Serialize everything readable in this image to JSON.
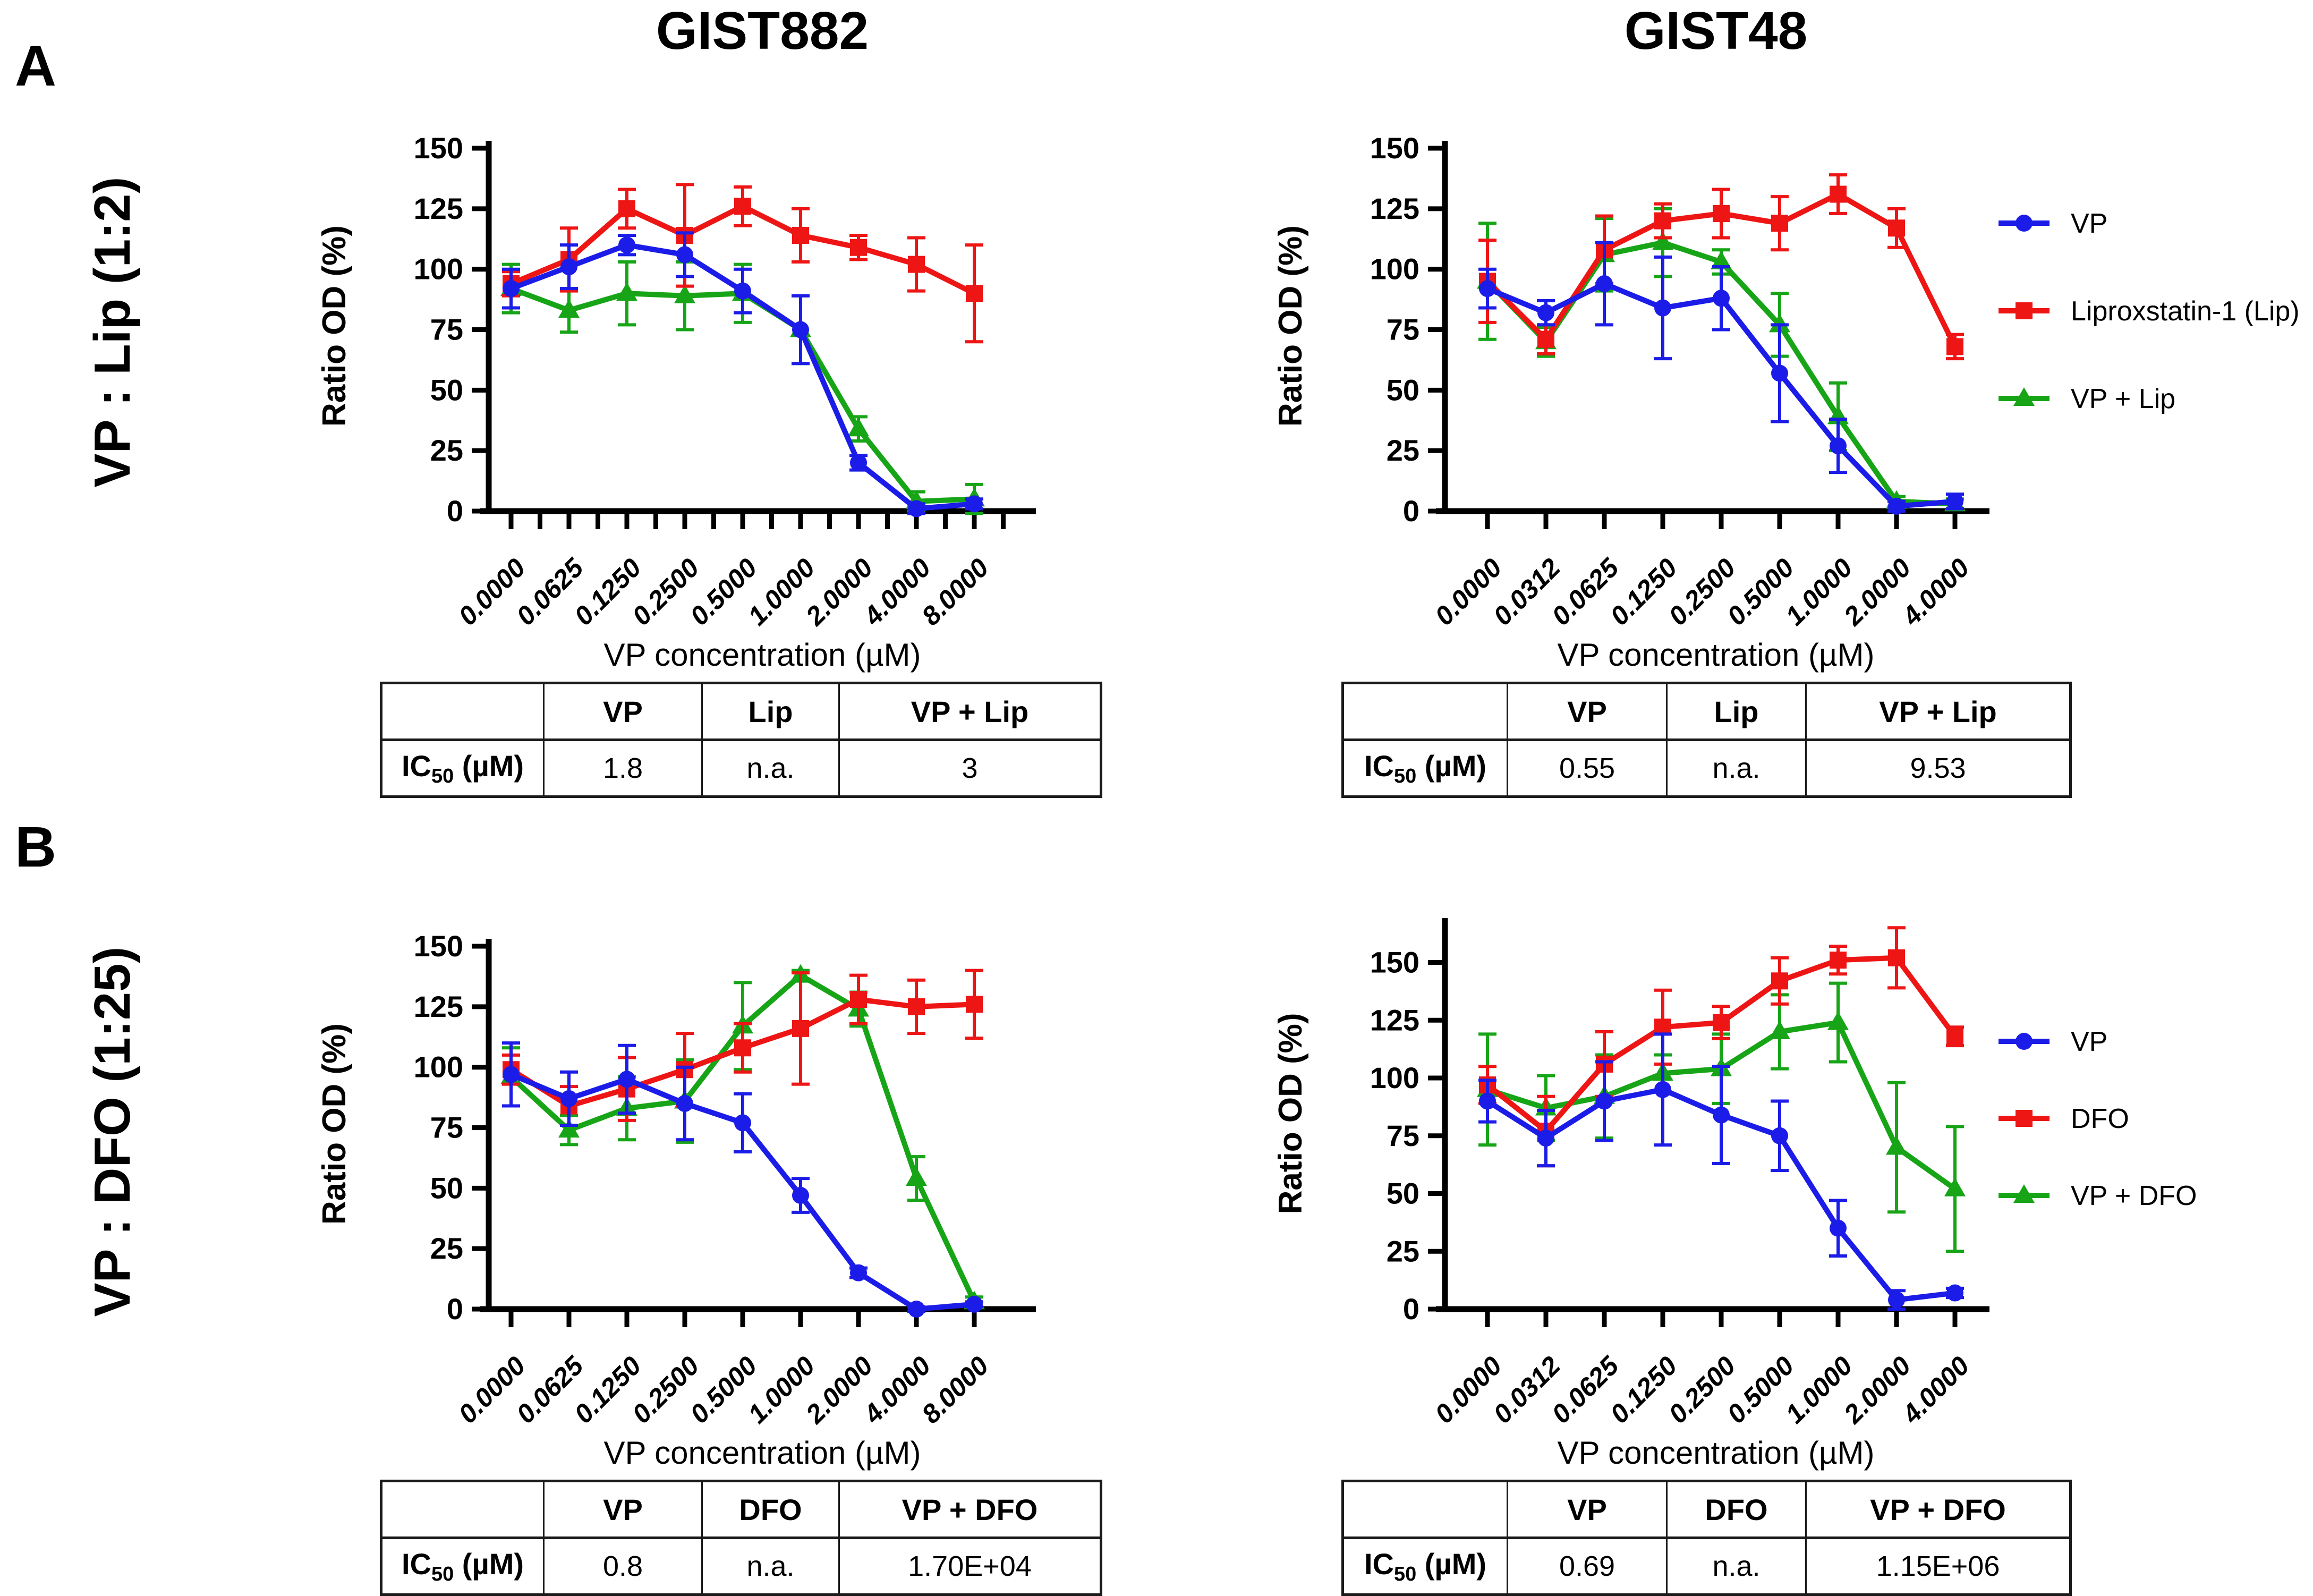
{
  "colors": {
    "vp": "#1C1CE8",
    "lip": "#EE1515",
    "combo": "#17A517",
    "axis": "#000000"
  },
  "panels": {
    "a": {
      "label": "A",
      "row_label": "VP : Lip (1:2)"
    },
    "b": {
      "label": "B",
      "row_label": "VP : DFO (1:25)"
    }
  },
  "columns": [
    {
      "title": "GIST882"
    },
    {
      "title": "GIST48"
    }
  ],
  "axis": {
    "y_label": "Ratio OD (%)",
    "x_label": "VP concentration (µM)",
    "y_ticks": [
      0,
      25,
      50,
      75,
      100,
      125,
      150
    ]
  },
  "chart_data": [
    {
      "type": "line",
      "panel": "A",
      "cell_line": "GIST882",
      "title": "GIST882",
      "xlabel": "VP concentration (µM)",
      "ylabel": "Ratio OD (%)",
      "ylim": [
        0,
        150
      ],
      "grid": false,
      "legend_position": "none",
      "categories": [
        "0.0000",
        "0.0625",
        "0.1250",
        "0.2500",
        "0.5000",
        "1.0000",
        "2.0000",
        "4.0000",
        "8.0000"
      ],
      "series": [
        {
          "name": "VP",
          "marker": "circle",
          "color": "vp",
          "values": [
            92,
            101,
            110,
            106,
            91,
            75,
            20,
            1,
            3
          ],
          "errors": [
            8,
            9,
            4,
            9,
            9,
            14,
            3,
            2,
            2
          ]
        },
        {
          "name": "Liproxstatin-1 (Lip)",
          "marker": "square",
          "color": "lip",
          "values": [
            94,
            104,
            125,
            114,
            126,
            114,
            109,
            102,
            90
          ],
          "errors": [
            5,
            13,
            8,
            21,
            8,
            11,
            5,
            11,
            20
          ]
        },
        {
          "name": "VP + Lip",
          "marker": "triangle",
          "color": "combo",
          "values": [
            92,
            83,
            90,
            89,
            90,
            75,
            34,
            4,
            5
          ],
          "errors": [
            10,
            9,
            13,
            14,
            12,
            14,
            5,
            4,
            6
          ]
        }
      ],
      "table": {
        "corner": "",
        "col_headers": [
          "VP",
          "Lip",
          "VP + Lip"
        ],
        "row_label": {
          "prefix": "IC",
          "sub": "50",
          "suffix": " (µM)"
        },
        "values": [
          "1.8",
          "n.a.",
          "3"
        ]
      }
    },
    {
      "type": "line",
      "panel": "A",
      "cell_line": "GIST48",
      "title": "GIST48",
      "xlabel": "VP concentration (µM)",
      "ylabel": "Ratio OD (%)",
      "ylim": [
        0,
        150
      ],
      "grid": false,
      "legend_position": "right",
      "categories": [
        "0.0000",
        "0.0312",
        "0.0625",
        "0.1250",
        "0.2500",
        "0.5000",
        "1.0000",
        "2.0000",
        "4.0000"
      ],
      "series": [
        {
          "name": "VP",
          "marker": "circle",
          "color": "vp",
          "values": [
            92,
            82,
            94,
            84,
            88,
            57,
            27,
            2,
            4
          ],
          "errors": [
            8,
            5,
            17,
            21,
            13,
            20,
            11,
            2,
            3
          ]
        },
        {
          "name": "Liproxstatin-1 (Lip)",
          "marker": "square",
          "color": "lip",
          "values": [
            95,
            71,
            108,
            120,
            123,
            119,
            131,
            117,
            68
          ],
          "errors": [
            17,
            6,
            14,
            7,
            10,
            11,
            8,
            8,
            5
          ]
        },
        {
          "name": "VP + Lip",
          "marker": "triangle",
          "color": "combo",
          "values": [
            95,
            70,
            106,
            111,
            103,
            77,
            39,
            4,
            3
          ],
          "errors": [
            24,
            6,
            15,
            14,
            5,
            13,
            14,
            2,
            2
          ]
        }
      ],
      "table": {
        "corner": "",
        "col_headers": [
          "VP",
          "Lip",
          "VP + Lip"
        ],
        "row_label": {
          "prefix": "IC",
          "sub": "50",
          "suffix": " (µM)"
        },
        "values": [
          "0.55",
          "n.a.",
          "9.53"
        ]
      }
    },
    {
      "type": "line",
      "panel": "B",
      "cell_line": "GIST882",
      "title": "GIST882",
      "xlabel": "VP concentration (µM)",
      "ylabel": "Ratio OD (%)",
      "ylim": [
        0,
        150
      ],
      "grid": false,
      "legend_position": "none",
      "categories": [
        "0.0000",
        "0.0625",
        "0.1250",
        "0.2500",
        "0.5000",
        "1.0000",
        "2.0000",
        "4.0000",
        "8.0000"
      ],
      "series": [
        {
          "name": "VP",
          "marker": "circle",
          "color": "vp",
          "values": [
            97,
            87,
            95,
            85,
            77,
            47,
            15,
            0,
            2
          ],
          "errors": [
            13,
            11,
            14,
            15,
            12,
            7,
            2,
            1,
            1
          ]
        },
        {
          "name": "DFO",
          "marker": "square",
          "color": "lip",
          "values": [
            99,
            84,
            91,
            99,
            108,
            116,
            128,
            125,
            126
          ],
          "errors": [
            6,
            8,
            13,
            15,
            10,
            23,
            10,
            11,
            14
          ]
        },
        {
          "name": "VP + DFO",
          "marker": "triangle",
          "color": "combo",
          "values": [
            96,
            74,
            83,
            86,
            117,
            138,
            124,
            54,
            3
          ],
          "errors": [
            12,
            6,
            13,
            17,
            18,
            2,
            7,
            9,
            2
          ]
        }
      ],
      "table": {
        "corner": "",
        "col_headers": [
          "VP",
          "DFO",
          "VP + DFO"
        ],
        "row_label": {
          "prefix": "IC",
          "sub": "50",
          "suffix": " (µM)"
        },
        "values": [
          "0.8",
          "n.a.",
          "1.70E+04"
        ]
      }
    },
    {
      "type": "line",
      "panel": "B",
      "cell_line": "GIST48",
      "title": "GIST48",
      "xlabel": "VP concentration (µM)",
      "ylabel": "Ratio OD (%)",
      "ylim": [
        0,
        166
      ],
      "grid": false,
      "legend_position": "right",
      "categories": [
        "0.0000",
        "0.0312",
        "0.0625",
        "0.1250",
        "0.2500",
        "0.5000",
        "1.0000",
        "2.0000",
        "4.0000"
      ],
      "series": [
        {
          "name": "VP",
          "marker": "circle",
          "color": "vp",
          "values": [
            90,
            74,
            90,
            95,
            84,
            75,
            35,
            4,
            7
          ],
          "errors": [
            9,
            12,
            17,
            24,
            21,
            15,
            12,
            4,
            2
          ]
        },
        {
          "name": "DFO",
          "marker": "square",
          "color": "lip",
          "values": [
            97,
            77,
            106,
            122,
            124,
            142,
            151,
            152,
            118
          ],
          "errors": [
            8,
            15,
            14,
            16,
            7,
            10,
            6,
            13,
            4
          ]
        },
        {
          "name": "VP + DFO",
          "marker": "triangle",
          "color": "combo",
          "values": [
            95,
            87,
            92,
            102,
            104,
            120,
            124,
            70,
            52
          ],
          "errors": [
            24,
            14,
            18,
            8,
            15,
            16,
            17,
            28,
            27
          ]
        }
      ],
      "table": {
        "corner": "",
        "col_headers": [
          "VP",
          "DFO",
          "VP + DFO"
        ],
        "row_label": {
          "prefix": "IC",
          "sub": "50",
          "suffix": " (µM)"
        },
        "values": [
          "0.69",
          "n.a.",
          "1.15E+06"
        ]
      }
    }
  ]
}
